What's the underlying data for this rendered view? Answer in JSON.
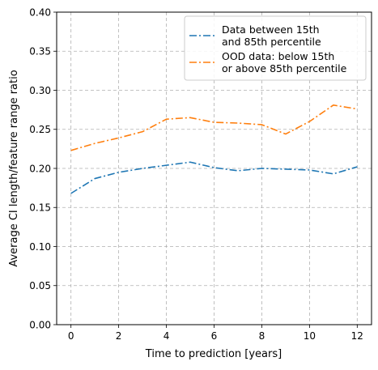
{
  "chart_data": {
    "type": "line",
    "title": "",
    "xlabel": "Time to prediction [years]",
    "ylabel": "Average CI length/feature range ratio",
    "xlim": [
      -0.6,
      12.6
    ],
    "ylim": [
      0.0,
      0.4
    ],
    "xticks": [
      0,
      2,
      4,
      6,
      8,
      10,
      12
    ],
    "xtick_labels": [
      "0",
      "2",
      "4",
      "6",
      "8",
      "10",
      "12"
    ],
    "yticks": [
      0.0,
      0.05,
      0.1,
      0.15,
      0.2,
      0.25,
      0.3,
      0.35,
      0.4
    ],
    "ytick_labels": [
      "0.00",
      "0.05",
      "0.10",
      "0.15",
      "0.20",
      "0.25",
      "0.30",
      "0.35",
      "0.40"
    ],
    "grid": true,
    "grid_style": "dashed",
    "legend_position": "top-right",
    "x": [
      0,
      1,
      2,
      3,
      4,
      5,
      6,
      7,
      8,
      9,
      10,
      11,
      12
    ],
    "series": [
      {
        "name_lines": [
          "Data between 15th",
          "and 85th percentile"
        ],
        "color": "#1f77b4",
        "line_style": "dashdot",
        "values": [
          0.168,
          0.187,
          0.195,
          0.2,
          0.204,
          0.208,
          0.201,
          0.197,
          0.2,
          0.199,
          0.198,
          0.193,
          0.202
        ]
      },
      {
        "name_lines": [
          "OOD data: below 15th",
          "or above 85th percentile"
        ],
        "color": "#ff7f0e",
        "line_style": "dashdot",
        "values": [
          0.223,
          0.232,
          0.239,
          0.247,
          0.263,
          0.265,
          0.259,
          0.258,
          0.256,
          0.244,
          0.26,
          0.281,
          0.276
        ]
      }
    ]
  }
}
